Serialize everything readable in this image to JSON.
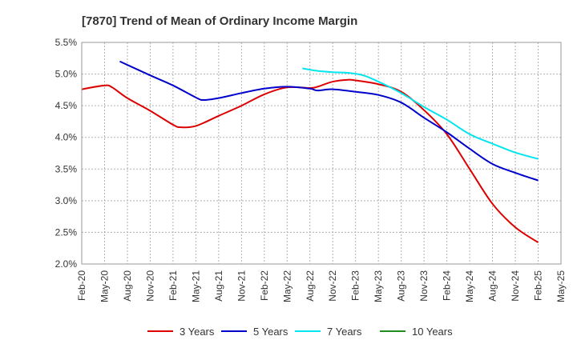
{
  "chart_data": {
    "type": "line",
    "title": "[7870]  Trend of Mean of Ordinary Income Margin",
    "xlabel": "",
    "ylabel": "",
    "ylim": [
      2.0,
      5.5
    ],
    "y_ticks": [
      "5.5%",
      "5.0%",
      "4.5%",
      "4.0%",
      "3.5%",
      "3.0%",
      "2.5%",
      "2.0%"
    ],
    "y_tick_values": [
      5.5,
      5.0,
      4.5,
      4.0,
      3.5,
      3.0,
      2.5,
      2.0
    ],
    "x_ticks": [
      "Feb-20",
      "May-20",
      "Aug-20",
      "Nov-20",
      "Feb-21",
      "May-21",
      "Aug-21",
      "Nov-21",
      "Feb-22",
      "May-22",
      "Aug-22",
      "Nov-22",
      "Feb-23",
      "May-23",
      "Aug-23",
      "Nov-23",
      "Feb-24",
      "May-24",
      "Aug-24",
      "Nov-24",
      "Feb-25",
      "May-25"
    ],
    "grid": true,
    "legend_position": "bottom",
    "series": [
      {
        "name": "3 Years",
        "color": "#dd0000",
        "points": [
          [
            "Feb-20",
            4.76
          ],
          [
            "May-20",
            4.82
          ],
          [
            "Jun-20",
            4.79
          ],
          [
            "Aug-20",
            4.62
          ],
          [
            "Nov-20",
            4.42
          ],
          [
            "Feb-21",
            4.2
          ],
          [
            "Mar-21",
            4.16
          ],
          [
            "May-21",
            4.18
          ],
          [
            "Aug-21",
            4.34
          ],
          [
            "Nov-21",
            4.5
          ],
          [
            "Feb-22",
            4.68
          ],
          [
            "May-22",
            4.79
          ],
          [
            "Aug-22",
            4.78
          ],
          [
            "Sep-22",
            4.8
          ],
          [
            "Nov-22",
            4.88
          ],
          [
            "Jan-23",
            4.91
          ],
          [
            "Feb-23",
            4.9
          ],
          [
            "May-23",
            4.84
          ],
          [
            "Aug-23",
            4.72
          ],
          [
            "Nov-23",
            4.43
          ],
          [
            "Feb-24",
            4.05
          ],
          [
            "May-24",
            3.5
          ],
          [
            "Aug-24",
            2.95
          ],
          [
            "Nov-24",
            2.58
          ],
          [
            "Feb-25",
            2.34
          ]
        ]
      },
      {
        "name": "5 Years",
        "color": "#0000cc",
        "points": [
          [
            "Jul-20",
            5.2
          ],
          [
            "Nov-20",
            4.98
          ],
          [
            "Feb-21",
            4.82
          ],
          [
            "May-21",
            4.63
          ],
          [
            "Jun-21",
            4.59
          ],
          [
            "Aug-21",
            4.62
          ],
          [
            "Nov-21",
            4.7
          ],
          [
            "Feb-22",
            4.77
          ],
          [
            "May-22",
            4.8
          ],
          [
            "Aug-22",
            4.77
          ],
          [
            "Sep-22",
            4.74
          ],
          [
            "Nov-22",
            4.76
          ],
          [
            "Feb-23",
            4.72
          ],
          [
            "May-23",
            4.67
          ],
          [
            "Aug-23",
            4.55
          ],
          [
            "Nov-23",
            4.31
          ],
          [
            "Feb-24",
            4.08
          ],
          [
            "May-24",
            3.82
          ],
          [
            "Aug-24",
            3.58
          ],
          [
            "Nov-24",
            3.44
          ],
          [
            "Feb-25",
            3.32
          ]
        ]
      },
      {
        "name": "7 Years",
        "color": "#00e5ee",
        "points": [
          [
            "Jul-22",
            5.09
          ],
          [
            "Sep-22",
            5.05
          ],
          [
            "Nov-22",
            5.03
          ],
          [
            "Jan-23",
            5.02
          ],
          [
            "Mar-23",
            4.98
          ],
          [
            "May-23",
            4.88
          ],
          [
            "Aug-23",
            4.7
          ],
          [
            "Nov-23",
            4.48
          ],
          [
            "Feb-24",
            4.28
          ],
          [
            "May-24",
            4.05
          ],
          [
            "Aug-24",
            3.9
          ],
          [
            "Nov-24",
            3.76
          ],
          [
            "Feb-25",
            3.66
          ]
        ]
      },
      {
        "name": "10 Years",
        "color": "#228b22",
        "points": []
      }
    ]
  }
}
